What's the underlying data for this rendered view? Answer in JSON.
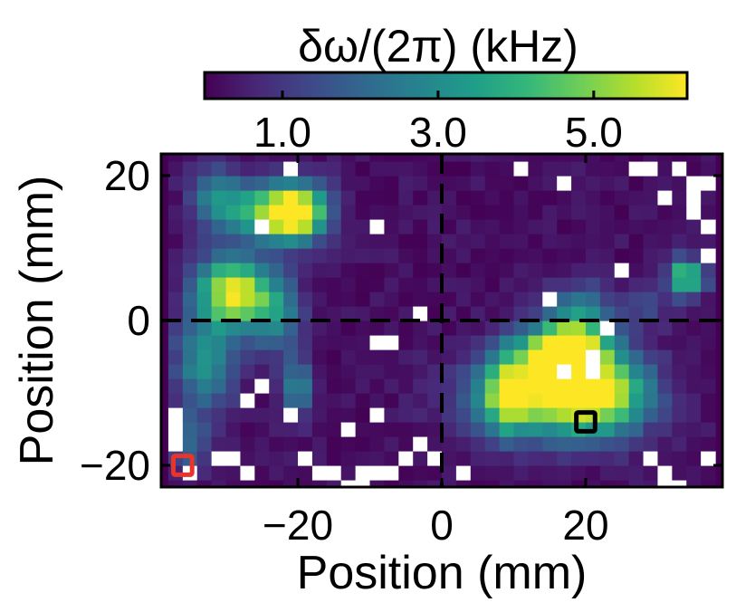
{
  "chart_data": {
    "type": "heatmap",
    "title": "",
    "xlabel": "Position (mm)",
    "ylabel": "Position (mm)",
    "xlim": [
      -39,
      39
    ],
    "ylim": [
      -23,
      23
    ],
    "x_ticks": [
      -20,
      0,
      20
    ],
    "y_ticks": [
      20,
      0,
      -20
    ],
    "x_tick_labels": [
      "−20",
      "0",
      "20"
    ],
    "y_tick_labels": [
      "20",
      "0",
      "−20"
    ],
    "pixel_size_mm": 2,
    "colorbar": {
      "label": "δω/(2π) (kHz)",
      "range": [
        0,
        6.2
      ],
      "ticks": [
        1.0,
        3.0,
        5.0
      ],
      "tick_labels": [
        "1.0",
        "3.0",
        "5.0"
      ],
      "colormap": "viridis",
      "placement": "top"
    },
    "missing_color": "#ffffff",
    "reference_lines": {
      "x": 0,
      "y": 0,
      "style": "dashed",
      "color": "#000000"
    },
    "markers": [
      {
        "name": "red-square",
        "x": -36,
        "y": -20,
        "color": "#e8342a"
      },
      {
        "name": "black-square",
        "x": 20,
        "y": -14,
        "color": "#000000"
      }
    ],
    "blobs": [
      {
        "x": -29,
        "y": 4,
        "amp": 5.8,
        "sx": 3.5,
        "sy": 3.5
      },
      {
        "x": -24,
        "y": 15,
        "amp": 3.8,
        "sx": 4,
        "sy": 2.5
      },
      {
        "x": -20,
        "y": 15,
        "amp": 5.3,
        "sx": 3,
        "sy": 2.8
      },
      {
        "x": -31,
        "y": 17,
        "amp": 2.6,
        "sx": 2.5,
        "sy": 3
      },
      {
        "x": -33,
        "y": -6,
        "amp": 2.8,
        "sx": 3,
        "sy": 4.5
      },
      {
        "x": -23,
        "y": 1,
        "amp": 2.6,
        "sx": 2.5,
        "sy": 3.5
      },
      {
        "x": -20,
        "y": -9,
        "amp": 2.4,
        "sx": 1.5,
        "sy": 3
      },
      {
        "x": -35,
        "y": -17,
        "amp": 1.6,
        "sx": 2,
        "sy": 3
      },
      {
        "x": 17,
        "y": -4,
        "amp": 6.0,
        "sx": 4,
        "sy": 2.5
      },
      {
        "x": 14,
        "y": -10,
        "amp": 4.8,
        "sx": 7,
        "sy": 4
      },
      {
        "x": 22,
        "y": -10,
        "amp": 4.3,
        "sx": 5,
        "sy": 4
      },
      {
        "x": 19,
        "y": 1,
        "amp": 2.4,
        "sx": 3,
        "sy": 3
      },
      {
        "x": 9,
        "y": -10,
        "amp": 3.0,
        "sx": 2,
        "sy": 4
      },
      {
        "x": 34,
        "y": 6,
        "amp": 4.7,
        "sx": 1.8,
        "sy": 1.8
      },
      {
        "x": 28,
        "y": 2,
        "amp": 1.2,
        "sx": 2,
        "sy": 2
      }
    ],
    "background_value": 0.25,
    "noise_amplitude": 0.5,
    "nan_cells": [
      [
        -21,
        21
      ],
      [
        -25,
        13
      ],
      [
        -9,
        13
      ],
      [
        -3,
        1
      ],
      [
        -7,
        -3
      ],
      [
        -9,
        -3
      ],
      [
        -25,
        -9
      ],
      [
        -27,
        -11
      ],
      [
        -21,
        -13
      ],
      [
        -13,
        -15
      ],
      [
        -9,
        -13
      ],
      [
        -37,
        -13
      ],
      [
        -37,
        -15
      ],
      [
        -37,
        -17
      ],
      [
        -31,
        -19
      ],
      [
        -29,
        -19
      ],
      [
        -27,
        -21
      ],
      [
        -35,
        -21
      ],
      [
        -19,
        -19
      ],
      [
        -17,
        -21
      ],
      [
        -15,
        -21
      ],
      [
        -11,
        -21
      ],
      [
        -9,
        -21
      ],
      [
        -5,
        -19
      ],
      [
        -7,
        -21
      ],
      [
        -13,
        -23
      ],
      [
        -11,
        -23
      ],
      [
        -3,
        -17
      ],
      [
        -1,
        -19
      ],
      [
        11,
        21
      ],
      [
        17,
        19
      ],
      [
        27,
        21
      ],
      [
        29,
        21
      ],
      [
        33,
        21
      ],
      [
        35,
        19
      ],
      [
        37,
        19
      ],
      [
        31,
        17
      ],
      [
        35,
        17
      ],
      [
        35,
        15
      ],
      [
        37,
        13
      ],
      [
        37,
        9
      ],
      [
        25,
        7
      ],
      [
        15,
        3
      ],
      [
        23,
        -1
      ],
      [
        17,
        -7
      ],
      [
        21,
        -7
      ],
      [
        3,
        -21
      ],
      [
        29,
        -19
      ],
      [
        31,
        -21
      ],
      [
        37,
        -19
      ],
      [
        31,
        -23
      ],
      [
        33,
        -23
      ],
      [
        21,
        -5
      ]
    ]
  }
}
